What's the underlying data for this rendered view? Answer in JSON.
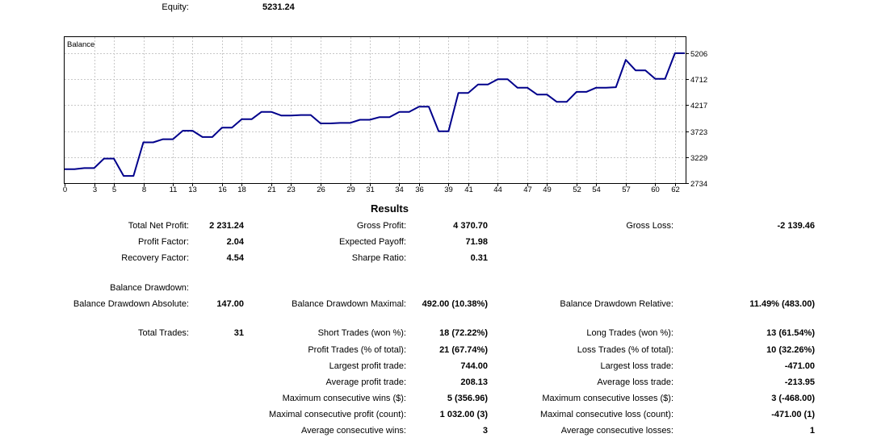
{
  "equity": {
    "label": "Equity:",
    "value": "5231.24"
  },
  "chart_data": {
    "type": "line",
    "title": "Balance",
    "x": [
      0,
      1,
      2,
      3,
      4,
      5,
      6,
      7,
      8,
      9,
      10,
      11,
      12,
      13,
      14,
      15,
      16,
      17,
      18,
      19,
      20,
      21,
      22,
      23,
      24,
      25,
      26,
      27,
      28,
      29,
      30,
      31,
      32,
      33,
      34,
      35,
      36,
      37,
      38,
      39,
      40,
      41,
      42,
      43,
      44,
      45,
      46,
      47,
      48,
      49,
      50,
      51,
      52,
      53,
      54,
      55,
      56,
      57,
      58,
      59,
      60,
      61,
      62,
      63
    ],
    "series": [
      {
        "values": [
          3000,
          3000,
          3020,
          3020,
          3200,
          3200,
          2870,
          2870,
          3510,
          3510,
          3570,
          3570,
          3730,
          3730,
          3610,
          3610,
          3790,
          3790,
          3950,
          3950,
          4090,
          4090,
          4020,
          4020,
          4030,
          4030,
          3870,
          3870,
          3880,
          3880,
          3940,
          3940,
          3990,
          3990,
          4090,
          4090,
          4190,
          4190,
          3720,
          3720,
          4450,
          4450,
          4610,
          4610,
          4710,
          4710,
          4550,
          4550,
          4420,
          4420,
          4280,
          4280,
          4470,
          4470,
          4550,
          4550,
          4560,
          5080,
          4880,
          4880,
          4720,
          4720,
          5206,
          5206
        ]
      }
    ],
    "y_ticks": [
      "5206",
      "4712",
      "4217",
      "3723",
      "3229",
      "2734"
    ],
    "x_ticks": [
      "0",
      "3",
      "5",
      "8",
      "11",
      "13",
      "16",
      "18",
      "21",
      "23",
      "26",
      "29",
      "31",
      "34",
      "36",
      "39",
      "41",
      "44",
      "47",
      "49",
      "52",
      "54",
      "57",
      "60",
      "62"
    ],
    "ylim": [
      2734,
      5206
    ],
    "xlim": [
      0,
      63
    ],
    "grid": true,
    "line_color": "#00008b"
  },
  "results": {
    "title": "Results",
    "col1": [
      {
        "label": "Total Net Profit:",
        "value": "2 231.24"
      },
      {
        "label": "Profit Factor:",
        "value": "2.04"
      },
      {
        "label": "Recovery Factor:",
        "value": "4.54"
      },
      {
        "label": "Balance Drawdown:",
        "value": ""
      },
      {
        "label": "Balance Drawdown Absolute:",
        "value": "147.00"
      },
      {
        "label": "Total Trades:",
        "value": "31"
      }
    ],
    "col2": [
      {
        "label": "Gross Profit:",
        "value": "4 370.70"
      },
      {
        "label": "Expected Payoff:",
        "value": "71.98"
      },
      {
        "label": "Sharpe Ratio:",
        "value": "0.31"
      },
      {
        "label": "Balance Drawdown Maximal:",
        "value": "492.00 (10.38%)"
      },
      {
        "label": "Short Trades (won %):",
        "value": "18 (72.22%)"
      },
      {
        "label": "Profit Trades (% of total):",
        "value": "21 (67.74%)"
      },
      {
        "label": "Largest profit trade:",
        "value": "744.00"
      },
      {
        "label": "Average profit trade:",
        "value": "208.13"
      },
      {
        "label": "Maximum consecutive wins ($):",
        "value": "5 (356.96)"
      },
      {
        "label": "Maximal consecutive profit (count):",
        "value": "1 032.00 (3)"
      },
      {
        "label": "Average consecutive wins:",
        "value": "3"
      }
    ],
    "col3": [
      {
        "label": "Gross Loss:",
        "value": "-2 139.46"
      },
      {
        "label": "Balance Drawdown Relative:",
        "value": "11.49% (483.00)"
      },
      {
        "label": "Long Trades (won %):",
        "value": "13 (61.54%)"
      },
      {
        "label": "Loss Trades (% of total):",
        "value": "10 (32.26%)"
      },
      {
        "label": "Largest loss trade:",
        "value": "-471.00"
      },
      {
        "label": "Average loss trade:",
        "value": "-213.95"
      },
      {
        "label": "Maximum consecutive losses ($):",
        "value": "3 (-468.00)"
      },
      {
        "label": "Maximal consecutive loss (count):",
        "value": "-471.00 (1)"
      },
      {
        "label": "Average consecutive losses:",
        "value": "1"
      }
    ]
  }
}
